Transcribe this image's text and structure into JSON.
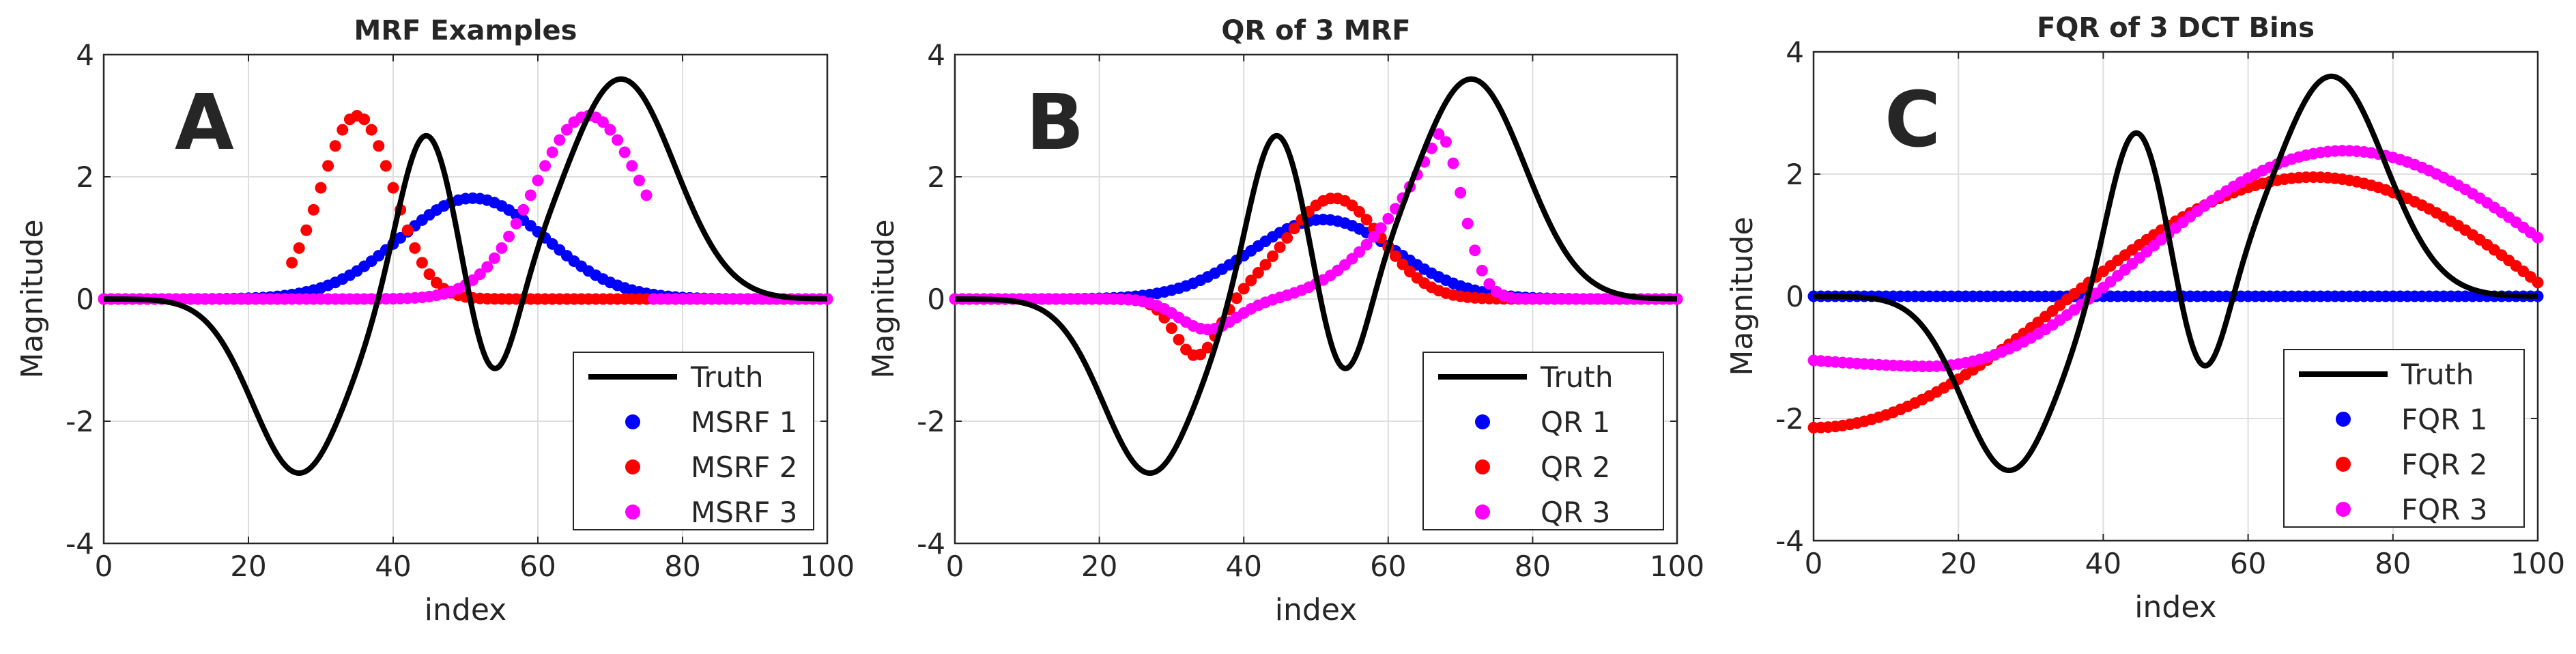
{
  "chart_data": [
    {
      "type": "scatter",
      "panel_letter": "A",
      "title": "MRF Examples",
      "xlabel": "index",
      "ylabel": "Magnitude",
      "xlim": [
        0,
        100
      ],
      "ylim": [
        -4,
        4
      ],
      "xticks": [
        0,
        20,
        40,
        60,
        80,
        100
      ],
      "yticks": [
        -4,
        -2,
        0,
        2,
        4
      ],
      "grid": true,
      "legend_position": "bottom-right",
      "series": [
        {
          "name": "Truth",
          "style": "line",
          "color": "#000000",
          "function": "truth"
        },
        {
          "name": "MSRF 1",
          "style": "markers",
          "color": "#0000ff",
          "function": "gauss",
          "params": {
            "amp": 1.65,
            "center": 51,
            "sigma": 10,
            "lo": 0,
            "hi": 100
          }
        },
        {
          "name": "MSRF 2",
          "style": "markers",
          "color": "#ff0000",
          "function": "gauss",
          "params": {
            "amp": 3.0,
            "center": 35,
            "sigma": 5,
            "lo": 26,
            "hi": 100
          }
        },
        {
          "name": "MSRF 3",
          "style": "markers",
          "color": "#ff00ff",
          "function": "gauss",
          "params": {
            "amp": 3.0,
            "center": 67,
            "sigma": 7.5,
            "lo": 0,
            "hi": 75
          }
        }
      ]
    },
    {
      "type": "scatter",
      "panel_letter": "B",
      "title": "QR of 3 MRF",
      "xlabel": "index",
      "ylabel": "Magnitude",
      "xlim": [
        0,
        100
      ],
      "ylim": [
        -4,
        4
      ],
      "xticks": [
        0,
        20,
        40,
        60,
        80,
        100
      ],
      "yticks": [
        -4,
        -2,
        0,
        2,
        4
      ],
      "grid": true,
      "legend_position": "bottom-right",
      "series": [
        {
          "name": "Truth",
          "style": "line",
          "color": "#000000",
          "function": "truth"
        },
        {
          "name": "QR 1",
          "style": "markers",
          "color": "#0000ff",
          "function": "gauss",
          "params": {
            "amp": 1.3,
            "center": 51,
            "sigma": 10,
            "lo": 0,
            "hi": 100
          }
        },
        {
          "name": "QR 2",
          "style": "markers",
          "color": "#ff0000",
          "function": "qr2"
        },
        {
          "name": "QR 3",
          "style": "markers",
          "color": "#ff00ff",
          "function": "qr3"
        }
      ]
    },
    {
      "type": "scatter",
      "panel_letter": "C",
      "title": "FQR of 3 DCT Bins",
      "xlabel": "index",
      "ylabel": "Magnitude",
      "xlim": [
        0,
        100
      ],
      "ylim": [
        -4,
        4
      ],
      "xticks": [
        0,
        20,
        40,
        60,
        80,
        100
      ],
      "yticks": [
        -4,
        -2,
        0,
        2,
        4
      ],
      "grid": true,
      "legend_position": "bottom-right",
      "series": [
        {
          "name": "Truth",
          "style": "line",
          "color": "#000000",
          "function": "truth"
        },
        {
          "name": "FQR 1",
          "style": "markers",
          "color": "#0000ff",
          "function": "zero"
        },
        {
          "name": "FQR 2",
          "style": "markers",
          "color": "#ff0000",
          "function": "fqr2"
        },
        {
          "name": "FQR 3",
          "style": "markers",
          "color": "#ff00ff",
          "function": "fqr3"
        }
      ]
    }
  ]
}
